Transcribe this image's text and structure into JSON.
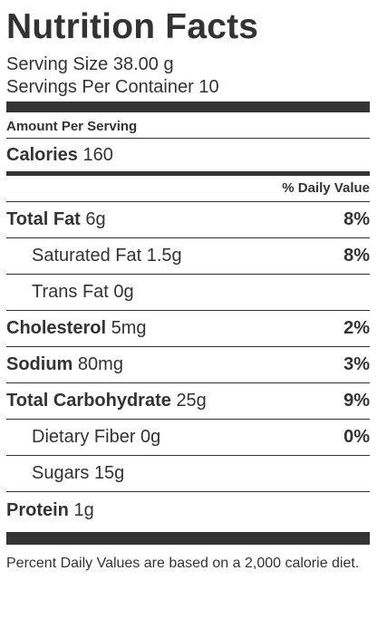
{
  "title": "Nutrition Facts",
  "serving_size_label": "Serving Size",
  "serving_size_value": "38.00 g",
  "servings_label": "Servings Per Container",
  "servings_value": "10",
  "amount_per_serving": "Amount Per Serving",
  "calories_label": "Calories",
  "calories_value": "160",
  "daily_value_header": "% Daily Value",
  "nutrients": [
    {
      "name": "Total Fat",
      "amount": "6g",
      "pct": "8%",
      "bold": true,
      "indent": false
    },
    {
      "name": "Saturated Fat",
      "amount": "1.5g",
      "pct": "8%",
      "bold": false,
      "indent": true
    },
    {
      "name": "Trans Fat",
      "amount": "0g",
      "pct": "",
      "bold": false,
      "indent": true
    },
    {
      "name": "Cholesterol",
      "amount": "5mg",
      "pct": "2%",
      "bold": true,
      "indent": false
    },
    {
      "name": "Sodium",
      "amount": "80mg",
      "pct": "3%",
      "bold": true,
      "indent": false
    },
    {
      "name": "Total Carbohydrate",
      "amount": "25g",
      "pct": "9%",
      "bold": true,
      "indent": false
    },
    {
      "name": "Dietary Fiber",
      "amount": "0g",
      "pct": "0%",
      "bold": false,
      "indent": true
    },
    {
      "name": "Sugars",
      "amount": "15g",
      "pct": "",
      "bold": false,
      "indent": true
    },
    {
      "name": "Protein",
      "amount": "1g",
      "pct": "",
      "bold": true,
      "indent": false
    }
  ],
  "footnote": "Percent Daily Values are based on a 2,000 calorie diet.",
  "colors": {
    "text": "#333333",
    "background": "#ffffff"
  }
}
